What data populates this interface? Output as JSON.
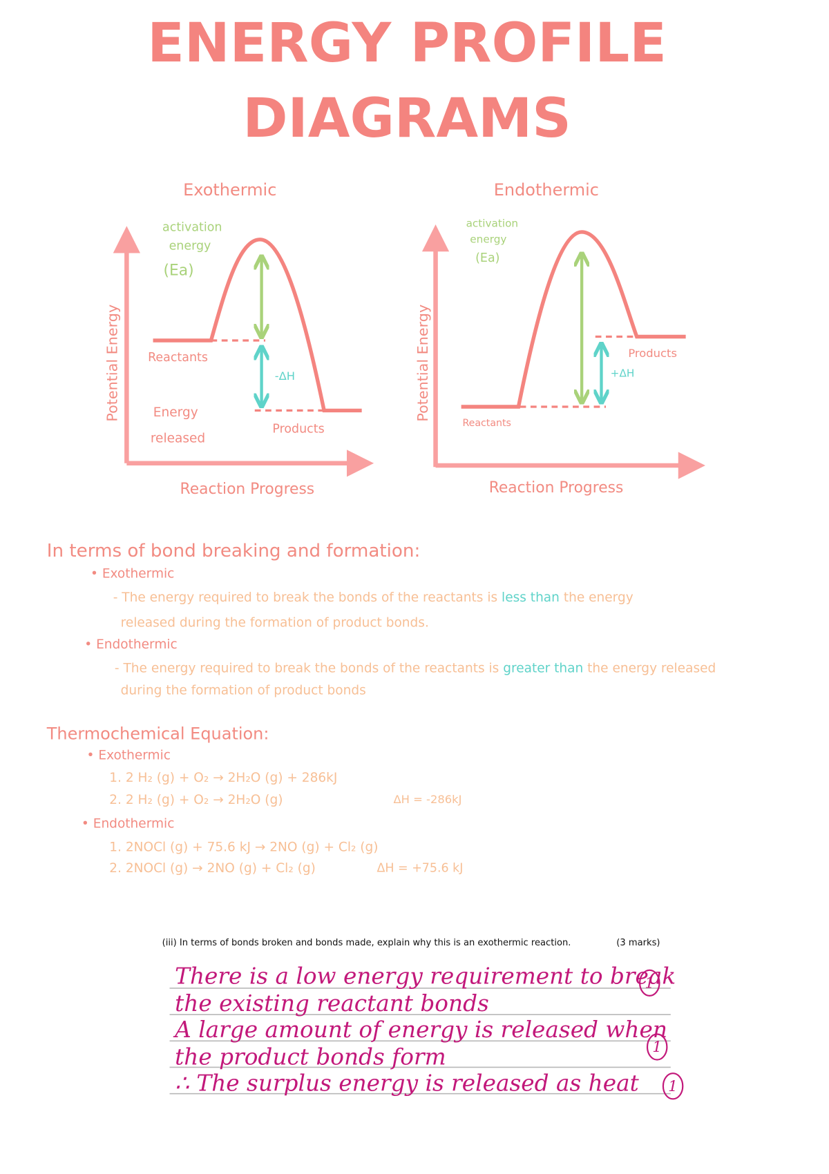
{
  "title_lines": [
    "ENERGY PROFILE",
    "DIAGRAMS"
  ],
  "diagrams": [
    {
      "title": "Exothermic",
      "y_axis": "Potential Energy",
      "x_axis": "Reaction Progress",
      "activation_lines": [
        "activation",
        "energy",
        "(Ea)"
      ],
      "reactants": "Reactants",
      "products": "Products",
      "delta_h": "-ΔH",
      "energy_released_lines": [
        "Energy",
        "released"
      ]
    },
    {
      "title": "Endothermic",
      "y_axis": "Potential Energy",
      "x_axis": "Reaction Progress",
      "activation_lines": [
        "activation",
        "energy",
        "(Ea)"
      ],
      "reactants": "Reactants",
      "products": "Products",
      "delta_h": "+ΔH"
    }
  ],
  "bonds": {
    "heading": "In terms of bond breaking and formation:",
    "items": [
      {
        "label": "• Exothermic",
        "line1": "- The energy required to break the bonds of the reactants is",
        "highlight": "less than",
        "line1_end": "the energy",
        "line2": "released during the formation of product bonds."
      },
      {
        "label": "• Endothermic",
        "line1": "- The energy required to break the bonds of the reactants is",
        "highlight": "greater than",
        "line1_end": "the energy released",
        "line2": "during the formation of product bonds"
      }
    ]
  },
  "thermo": {
    "heading": "Thermochemical Equation:",
    "groups": [
      {
        "label": "• Exothermic",
        "equations": [
          {
            "text": "1. 2 H₂ (g) + O₂ → 2H₂O (g) + 286kJ"
          },
          {
            "text": "2. 2 H₂ (g) + O₂ → 2H₂O (g)",
            "dh": "ΔH = -286kJ"
          }
        ]
      },
      {
        "label": "• Endothermic",
        "equations": [
          {
            "text": "1. 2NOCl (g) + 75.6 kJ → 2NO (g) + Cl₂ (g)"
          },
          {
            "text": "2. 2NOCl (g) → 2NO (g) + Cl₂ (g)",
            "dh": "ΔH = +75.6 kJ"
          }
        ]
      }
    ]
  },
  "question": {
    "text": "(iii) In terms of bonds broken and bonds made, explain why this is an exothermic reaction.",
    "marks": "(3 marks)",
    "answer_lines": [
      "There is a low energy requirement to break",
      "the existing reactant bonds",
      "A large amount of energy is released when",
      "the product bonds form",
      "∴ The surplus energy is released as heat"
    ],
    "awarded": [
      "1",
      "1",
      "1"
    ]
  }
}
